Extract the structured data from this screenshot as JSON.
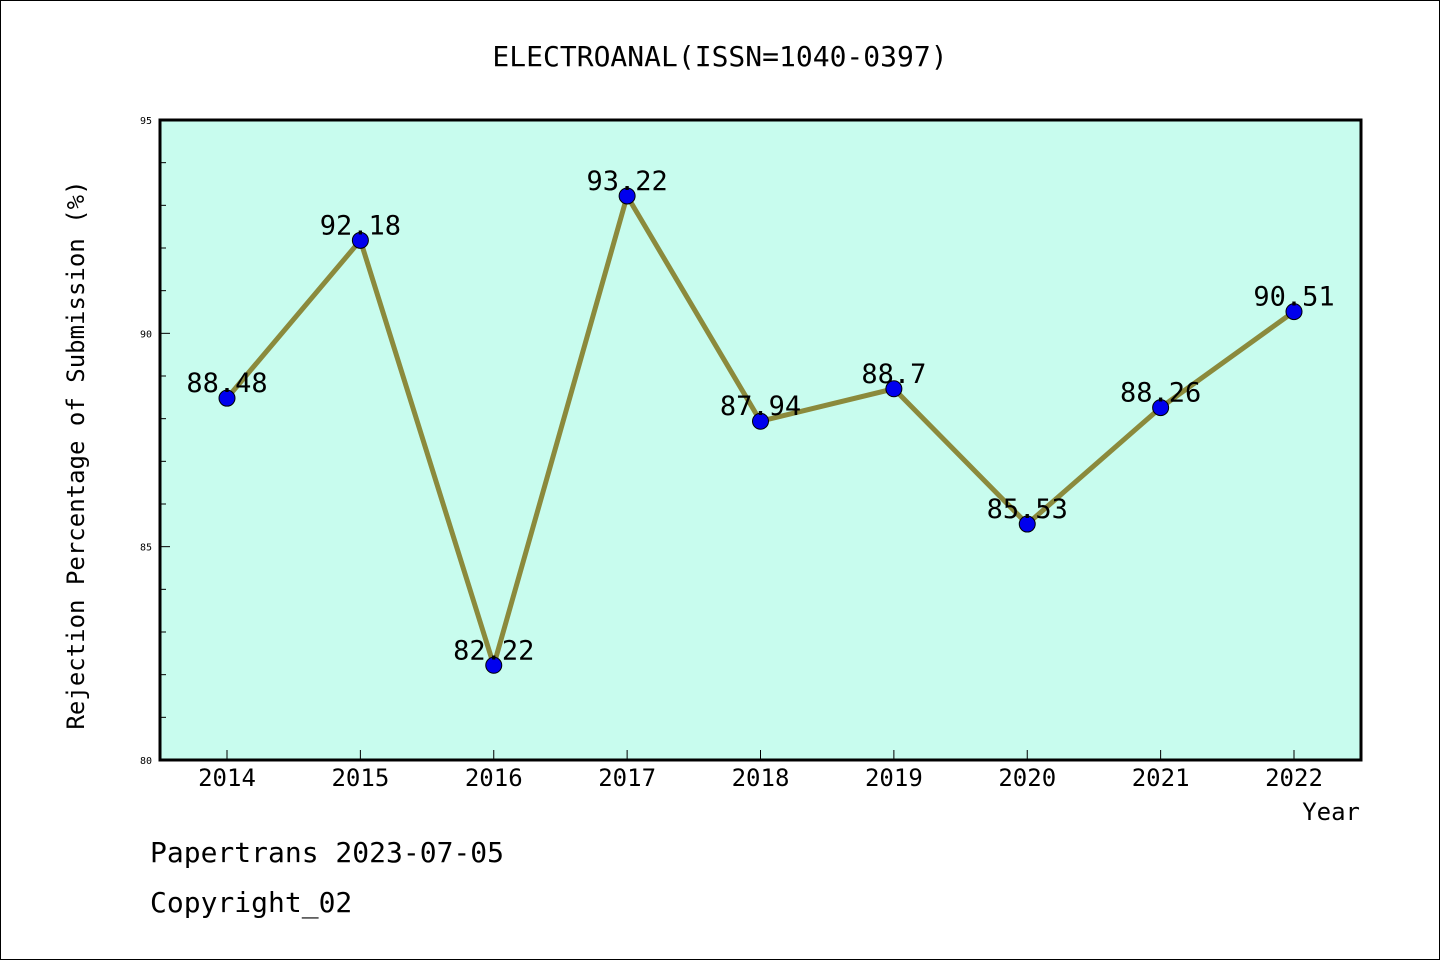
{
  "chart_data": {
    "type": "line",
    "title": "ELECTROANAL(ISSN=1040-0397)",
    "xlabel": "Year",
    "ylabel": "Rejection Percentage of Submission (%)",
    "categories": [
      "2014",
      "2015",
      "2016",
      "2017",
      "2018",
      "2019",
      "2020",
      "2021",
      "2022"
    ],
    "values": [
      88.48,
      92.18,
      82.22,
      93.22,
      87.94,
      88.7,
      85.53,
      88.26,
      90.51
    ],
    "data_labels": [
      "88.48",
      "92.18",
      "82.22",
      "93.22",
      "87.94",
      "88.7",
      "85.53",
      "88.26",
      "90.51"
    ],
    "ylim": [
      80,
      95
    ],
    "yticks": [
      80,
      85,
      90,
      95
    ],
    "grid": false,
    "legend": "none",
    "colors": {
      "plot_background": "#c8fcee",
      "line": "#8b8a3c",
      "marker": "#0000ee"
    }
  },
  "footer": {
    "line1": "Papertrans 2023-07-05",
    "line2": "Copyright_02"
  }
}
